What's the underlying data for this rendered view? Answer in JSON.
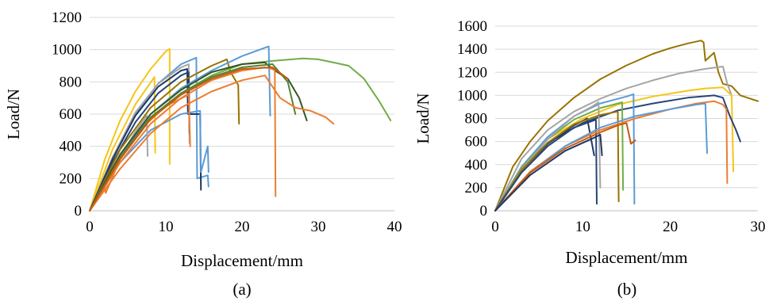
{
  "figure": {
    "caption_a": "(a)",
    "caption_b": "(b)"
  },
  "chart_data": [
    {
      "type": "line",
      "panel": "(a)",
      "xlabel": "Displacement/mm",
      "ylabel": "Load/N",
      "xlim": [
        0,
        40
      ],
      "ylim": [
        0,
        1200
      ],
      "xticks": [
        0,
        10,
        20,
        30,
        40
      ],
      "yticks": [
        0,
        200,
        400,
        600,
        800,
        1000,
        1200
      ],
      "grid": true,
      "series": [
        {
          "color": "#F5C518",
          "x": [
            0,
            2,
            4,
            6,
            8,
            10,
            10.5,
            10.5
          ],
          "y": [
            0,
            320,
            560,
            740,
            880,
            990,
            1005,
            290
          ]
        },
        {
          "color": "#F5C518",
          "x": [
            0,
            3,
            6,
            8.5,
            8.6
          ],
          "y": [
            0,
            380,
            660,
            830,
            360
          ]
        },
        {
          "color": "#5B9BD5",
          "x": [
            0,
            3,
            6,
            9,
            12,
            14,
            14.1,
            15.5,
            15.6
          ],
          "y": [
            0,
            330,
            600,
            790,
            910,
            950,
            200,
            220,
            150
          ]
        },
        {
          "color": "#A5A5A5",
          "x": [
            0,
            3,
            6,
            9,
            12,
            13,
            13.1
          ],
          "y": [
            0,
            330,
            610,
            790,
            890,
            910,
            420
          ]
        },
        {
          "color": "#1F3864",
          "x": [
            0,
            3,
            6,
            9,
            12,
            12.8,
            12.9,
            14.5,
            14.6
          ],
          "y": [
            0,
            320,
            590,
            770,
            870,
            880,
            600,
            600,
            130
          ]
        },
        {
          "color": "#264478",
          "x": [
            0,
            3,
            6,
            9,
            12,
            13,
            13.1
          ],
          "y": [
            0,
            300,
            550,
            730,
            840,
            860,
            480
          ]
        },
        {
          "color": "#5B9BD5",
          "x": [
            0,
            4,
            8,
            12,
            14.5,
            14.6,
            15.5,
            15.6
          ],
          "y": [
            0,
            300,
            500,
            600,
            620,
            240,
            400,
            240
          ]
        },
        {
          "color": "#A5A5A5",
          "x": [
            0,
            3,
            6,
            7.5,
            7.6
          ],
          "y": [
            0,
            260,
            490,
            590,
            340
          ]
        },
        {
          "color": "#ED7D31",
          "x": [
            0,
            2,
            2.1,
            4,
            7,
            10,
            13,
            13.2
          ],
          "y": [
            0,
            140,
            110,
            320,
            520,
            650,
            720,
            400
          ]
        },
        {
          "color": "#997300",
          "x": [
            0,
            4,
            8,
            12,
            16,
            18,
            18.5,
            19.5,
            19.6
          ],
          "y": [
            0,
            380,
            640,
            800,
            900,
            940,
            860,
            780,
            540
          ]
        },
        {
          "color": "#70AD47",
          "x": [
            0,
            4,
            8,
            12,
            16,
            20,
            24,
            28,
            30,
            32,
            34,
            36,
            38,
            39.5
          ],
          "y": [
            0,
            340,
            580,
            730,
            840,
            910,
            930,
            945,
            940,
            920,
            900,
            820,
            680,
            560
          ]
        },
        {
          "color": "#5B9BD5",
          "x": [
            0,
            4,
            8,
            12,
            16,
            20,
            23.5,
            23.7
          ],
          "y": [
            0,
            340,
            600,
            760,
            870,
            960,
            1020,
            590
          ]
        },
        {
          "color": "#375623",
          "x": [
            0,
            4,
            8,
            12,
            16,
            20,
            23,
            24,
            26,
            27.5,
            28.5
          ],
          "y": [
            0,
            350,
            600,
            750,
            860,
            910,
            920,
            880,
            820,
            700,
            560
          ]
        },
        {
          "color": "#548235",
          "x": [
            0,
            4,
            8,
            12,
            16,
            20,
            24,
            26,
            27
          ],
          "y": [
            0,
            330,
            580,
            730,
            830,
            890,
            910,
            800,
            600
          ]
        },
        {
          "color": "#ED7D31",
          "x": [
            0,
            4,
            8,
            12,
            16,
            20,
            23,
            24,
            24.3,
            24.4
          ],
          "y": [
            0,
            300,
            540,
            700,
            810,
            870,
            890,
            880,
            870,
            90
          ]
        },
        {
          "color": "#ED7D31",
          "x": [
            0,
            4,
            8,
            12,
            16,
            20,
            23,
            25,
            27,
            29,
            31,
            32
          ],
          "y": [
            0,
            260,
            480,
            640,
            740,
            810,
            840,
            700,
            640,
            620,
            580,
            540
          ]
        },
        {
          "color": "#C55A11",
          "x": [
            0,
            4,
            8,
            12,
            16,
            20,
            24,
            26
          ],
          "y": [
            0,
            320,
            570,
            720,
            820,
            880,
            890,
            820
          ]
        }
      ]
    },
    {
      "type": "line",
      "panel": "(b)",
      "xlabel": "Displacement/mm",
      "ylabel": "Load/N",
      "xlim": [
        0,
        30
      ],
      "ylim": [
        0,
        1600
      ],
      "xticks": [
        0,
        10,
        20,
        30
      ],
      "yticks": [
        0,
        200,
        400,
        600,
        800,
        1000,
        1200,
        1400,
        1600
      ],
      "grid": true,
      "series": [
        {
          "color": "#997300",
          "x": [
            0,
            2,
            4,
            6,
            9,
            12,
            15,
            18,
            20,
            22,
            23.5,
            23.8,
            24,
            25,
            25.5,
            26,
            27,
            28,
            30
          ],
          "y": [
            0,
            380,
            600,
            780,
            980,
            1140,
            1260,
            1360,
            1410,
            1450,
            1475,
            1460,
            1300,
            1370,
            1200,
            1100,
            1080,
            1000,
            950
          ]
        },
        {
          "color": "#A5A5A5",
          "x": [
            0,
            3,
            6,
            9,
            12,
            15,
            18,
            21,
            24,
            26,
            26.5,
            27
          ],
          "y": [
            0,
            450,
            700,
            860,
            970,
            1060,
            1130,
            1190,
            1230,
            1250,
            1100,
            1000
          ]
        },
        {
          "color": "#F5C518",
          "x": [
            0,
            3,
            6,
            10,
            14,
            18,
            22,
            24,
            26,
            27,
            27.2
          ],
          "y": [
            0,
            380,
            620,
            800,
            920,
            990,
            1040,
            1060,
            1070,
            1000,
            340
          ]
        },
        {
          "color": "#264478",
          "x": [
            0,
            3,
            6,
            10,
            14,
            18,
            22,
            25,
            26,
            26.8,
            27.5,
            28
          ],
          "y": [
            0,
            360,
            590,
            760,
            870,
            930,
            980,
            1000,
            980,
            820,
            700,
            600
          ]
        },
        {
          "color": "#5B9BD5",
          "x": [
            0,
            3,
            6,
            9,
            12,
            15,
            15.8,
            15.9
          ],
          "y": [
            0,
            380,
            640,
            820,
            930,
            990,
            1010,
            60
          ]
        },
        {
          "color": "#70AD47",
          "x": [
            0,
            3,
            6,
            9,
            12,
            14.5,
            14.6
          ],
          "y": [
            0,
            370,
            620,
            790,
            890,
            940,
            180
          ]
        },
        {
          "color": "#A5A5A5",
          "x": [
            0,
            3,
            6,
            9,
            11,
            11.8,
            12
          ],
          "y": [
            0,
            360,
            620,
            820,
            900,
            940,
            200
          ]
        },
        {
          "color": "#1F3864",
          "x": [
            0,
            3,
            6,
            9,
            10.5,
            11,
            11.3
          ],
          "y": [
            0,
            350,
            580,
            740,
            800,
            600,
            480
          ]
        },
        {
          "color": "#997300",
          "x": [
            0,
            3,
            6,
            9,
            12,
            14,
            14.1
          ],
          "y": [
            0,
            350,
            590,
            750,
            830,
            860,
            80
          ]
        },
        {
          "color": "#264478",
          "x": [
            0,
            3,
            6,
            9,
            11.5,
            11.6
          ],
          "y": [
            0,
            330,
            560,
            720,
            790,
            60
          ]
        },
        {
          "color": "#ED7D31",
          "x": [
            0,
            4,
            8,
            12,
            16,
            20,
            23,
            25,
            26,
            26.4,
            26.5
          ],
          "y": [
            0,
            340,
            560,
            700,
            800,
            880,
            930,
            950,
            920,
            880,
            240
          ]
        },
        {
          "color": "#5B9BD5",
          "x": [
            0,
            4,
            8,
            12,
            16,
            20,
            23,
            24,
            24.2
          ],
          "y": [
            0,
            330,
            560,
            720,
            820,
            880,
            920,
            930,
            500
          ]
        },
        {
          "color": "#C55A11",
          "x": [
            0,
            4,
            8,
            12,
            14,
            15,
            15.5,
            16
          ],
          "y": [
            0,
            330,
            540,
            680,
            740,
            760,
            580,
            610
          ]
        },
        {
          "color": "#1F3864",
          "x": [
            0,
            4,
            8,
            11.5,
            12,
            12.2
          ],
          "y": [
            0,
            310,
            520,
            640,
            660,
            480
          ]
        }
      ]
    }
  ]
}
